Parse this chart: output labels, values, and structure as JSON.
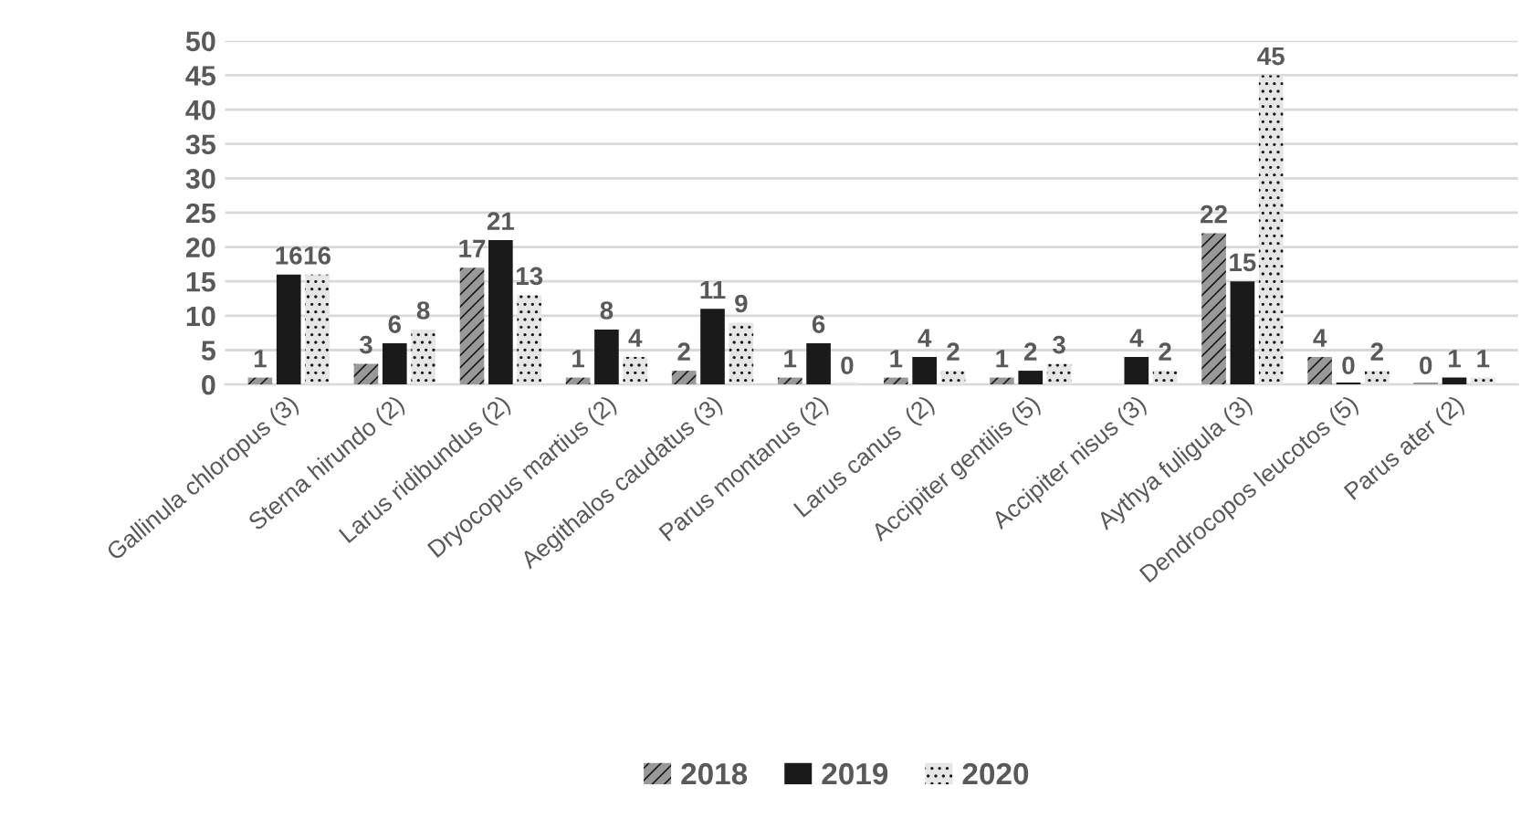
{
  "chart_data": {
    "type": "bar",
    "categories": [
      "Gallinula chloropus (3)",
      "Sterna hirundo (2)",
      "Larus ridibundus (2)",
      "Dryocopus martius (2)",
      "Aegithalos caudatus (3)",
      "Parus montanus (2)",
      "Larus canus  (2)",
      "Accipiter gentilis (5)",
      "Accipiter nisus (3)",
      "Aythya fuligula (3)",
      "Dendrocopos leucotos (5)",
      "Parus ater (2)"
    ],
    "series": [
      {
        "name": "2018",
        "color": "#999999",
        "values": [
          1,
          3,
          17,
          1,
          2,
          1,
          1,
          1,
          null,
          22,
          4,
          0
        ]
      },
      {
        "name": "2019",
        "color": "#1a1a1a",
        "values": [
          16,
          6,
          21,
          8,
          11,
          6,
          4,
          2,
          4,
          15,
          0,
          1
        ]
      },
      {
        "name": "2020",
        "color": "#e6e6e6",
        "values": [
          16,
          8,
          13,
          4,
          9,
          0,
          2,
          3,
          2,
          45,
          2,
          1
        ]
      }
    ],
    "ylim": [
      0,
      50
    ],
    "yticks": [
      0,
      5,
      10,
      15,
      20,
      25,
      30,
      35,
      40,
      45,
      50
    ],
    "grid": "y",
    "legend": "bottom",
    "data_labels": true
  }
}
